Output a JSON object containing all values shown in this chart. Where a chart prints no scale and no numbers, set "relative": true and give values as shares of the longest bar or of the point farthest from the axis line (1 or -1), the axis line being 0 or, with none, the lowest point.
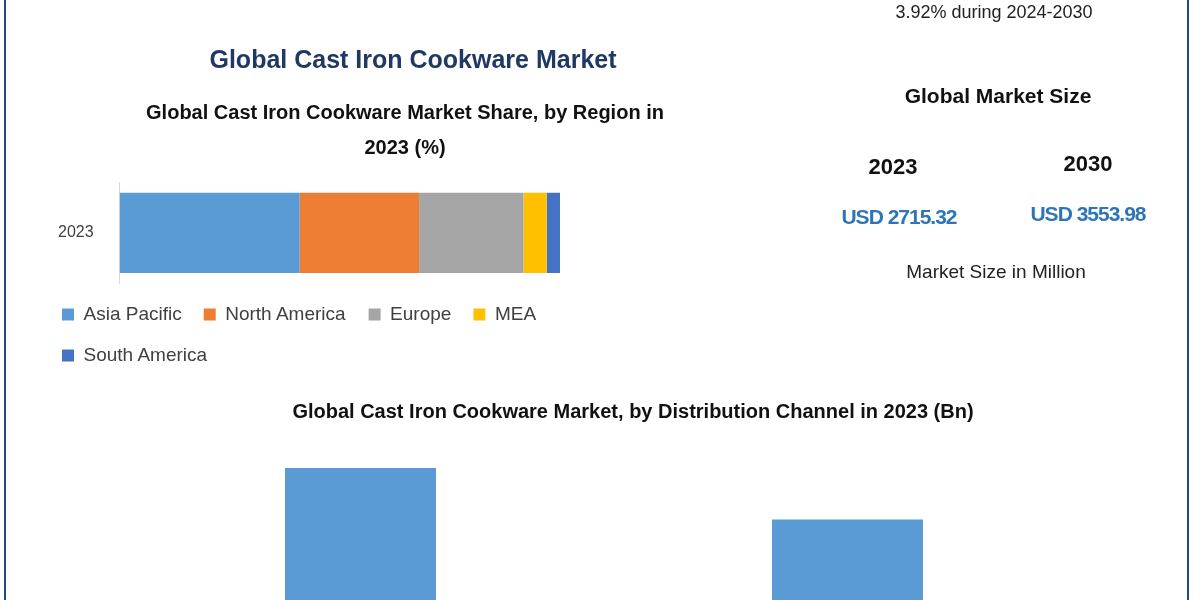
{
  "chart_data": [
    {
      "type": "bar",
      "orientation": "horizontal",
      "stacked": true,
      "relative": true,
      "title": "Global Cast Iron Cookware Market",
      "subtitle": "Global Cast Iron Cookware Market Share, by Region in 2023 (%)",
      "categories": [
        "2023"
      ],
      "legend": "bottom",
      "series": [
        {
          "name": "Asia Pacific",
          "color": "#5b9bd5",
          "values": [
            0.409
          ]
        },
        {
          "name": "North America",
          "color": "#ed7d31",
          "values": [
            0.271
          ]
        },
        {
          "name": "Europe",
          "color": "#a5a5a5",
          "values": [
            0.237
          ]
        },
        {
          "name": "MEA",
          "color": "#ffc000",
          "values": [
            0.053
          ]
        },
        {
          "name": "South America",
          "color": "#4472c4",
          "values": [
            0.03
          ]
        }
      ]
    },
    {
      "type": "other",
      "title": "Global Market Size",
      "subtitle": "3.92% during 2024-2030",
      "categories": [
        "2023",
        "2030"
      ],
      "value_labels": [
        "USD 2715.32",
        "USD 3553.98"
      ],
      "color": "#2e75b6",
      "annotations": [
        "Market Size in Million"
      ]
    },
    {
      "type": "bar",
      "relative": true,
      "title": "Global Cast Iron Cookware Market, by Distribution Channel in 2023 (Bn)",
      "categories": [
        null,
        null
      ],
      "values": [
        1,
        0.61
      ],
      "color": "#5b9bd5"
    }
  ]
}
